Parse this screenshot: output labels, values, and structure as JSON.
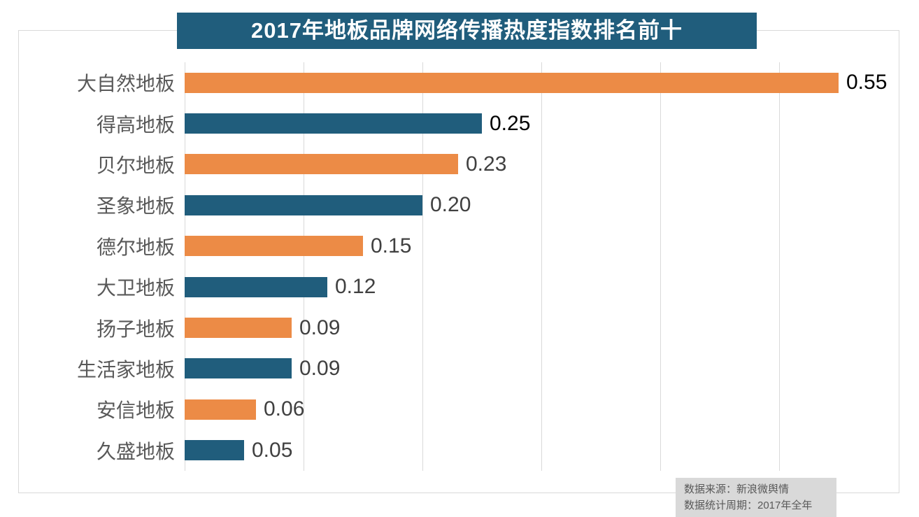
{
  "title": "2017年地板品牌网络传播热度指数排名前十",
  "chart_data": {
    "type": "bar",
    "orientation": "horizontal",
    "title": "2017年地板品牌网络传播热度指数排名前十",
    "categories": [
      "大自然地板",
      "得高地板",
      "贝尔地板",
      "圣象地板",
      "德尔地板",
      "大卫地板",
      "扬子地板",
      "生活家地板",
      "安信地板",
      "久盛地板"
    ],
    "values": [
      0.55,
      0.25,
      0.23,
      0.2,
      0.15,
      0.12,
      0.09,
      0.09,
      0.06,
      0.05
    ],
    "value_labels": [
      "0.55",
      "0.25",
      "0.23",
      "0.20",
      "0.15",
      "0.12",
      "0.09",
      "0.09",
      "0.06",
      "0.05"
    ],
    "xlabel": "",
    "ylabel": "",
    "xlim": [
      0,
      0.6
    ],
    "gridline_step": 0.1,
    "grid": "vertical-gridlines-only",
    "legend_position": "none",
    "bar_palette": [
      "#ec8b46",
      "#205d7c"
    ],
    "value_label_colors": [
      "#000000",
      "#000000",
      "#404040",
      "#404040",
      "#404040",
      "#404040",
      "#404040",
      "#404040",
      "#404040",
      "#404040"
    ]
  },
  "source_note": {
    "line1": "数据来源：新浪微舆情",
    "line2": "数据统计周期：2017年全年"
  },
  "colors": {
    "banner_bg": "#205d7c",
    "banner_text": "#ffffff",
    "orange_bar": "#ec8b46",
    "blue_bar": "#205d7c",
    "gridline": "#d9d9d9",
    "frame_border": "#d9d9d9",
    "category_label": "#595959",
    "source_bg": "#d9d9d9",
    "source_text": "#595959",
    "background": "#ffffff"
  }
}
